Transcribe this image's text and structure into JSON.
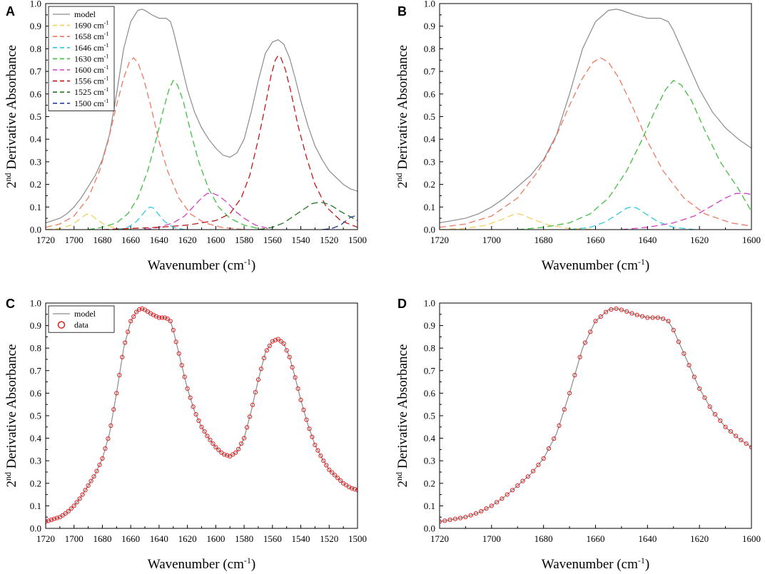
{
  "chart_data": [
    {
      "panel": "A",
      "type": "line",
      "xlabel": "Wavenumber (cm",
      "xlabel_sup": "-1",
      "xlabel_end": ")",
      "ylabel_sup": "nd",
      "ylabel_prefix": "2",
      "ylabel": " Derivative Absorbance",
      "xlim": [
        1720,
        1500
      ],
      "ylim": [
        0,
        1.0
      ],
      "xticks": [
        1720,
        1700,
        1680,
        1660,
        1640,
        1620,
        1600,
        1580,
        1560,
        1540,
        1520,
        1500
      ],
      "yticks": [
        "0.0",
        "0.1",
        "0.2",
        "0.3",
        "0.4",
        "0.5",
        "0.6",
        "0.7",
        "0.8",
        "0.9",
        "1.0"
      ],
      "legend_position": "top-left",
      "legend": [
        {
          "label": "model",
          "sup": "",
          "color": "#8c8c8c",
          "dash": false
        },
        {
          "label": "1690 cm",
          "sup": "-1",
          "color": "#f0d060",
          "dash": true
        },
        {
          "label": "1658 cm",
          "sup": "-1",
          "color": "#f07860",
          "dash": true
        },
        {
          "label": "1646 cm",
          "sup": "-1",
          "color": "#30c8e0",
          "dash": true
        },
        {
          "label": "1630 cm",
          "sup": "-1",
          "color": "#40c040",
          "dash": true
        },
        {
          "label": "1600 cm",
          "sup": "-1",
          "color": "#d040c0",
          "dash": true
        },
        {
          "label": "1556 cm",
          "sup": "-1",
          "color": "#c01818",
          "dash": true
        },
        {
          "label": "1525 cm",
          "sup": "-1",
          "color": "#207820",
          "dash": true
        },
        {
          "label": "1500 cm",
          "sup": "-1",
          "color": "#283c9c",
          "dash": true
        }
      ],
      "series": [
        {
          "name": "model",
          "color": "#8c8c8c",
          "dash": false,
          "x": [
            1720,
            1715,
            1710,
            1705,
            1700,
            1695,
            1690,
            1685,
            1680,
            1675,
            1670,
            1665,
            1660,
            1655,
            1652,
            1650,
            1645,
            1640,
            1635,
            1632,
            1630,
            1625,
            1620,
            1615,
            1610,
            1605,
            1600,
            1595,
            1590,
            1585,
            1580,
            1575,
            1570,
            1565,
            1560,
            1556,
            1552,
            1548,
            1544,
            1540,
            1535,
            1530,
            1525,
            1520,
            1515,
            1510,
            1505,
            1500
          ],
          "y": [
            0.03,
            0.04,
            0.05,
            0.07,
            0.1,
            0.14,
            0.19,
            0.24,
            0.31,
            0.42,
            0.6,
            0.8,
            0.92,
            0.97,
            0.975,
            0.97,
            0.95,
            0.935,
            0.935,
            0.92,
            0.88,
            0.75,
            0.62,
            0.52,
            0.45,
            0.4,
            0.36,
            0.33,
            0.32,
            0.34,
            0.4,
            0.52,
            0.66,
            0.78,
            0.83,
            0.84,
            0.82,
            0.76,
            0.67,
            0.57,
            0.46,
            0.37,
            0.31,
            0.26,
            0.23,
            0.2,
            0.18,
            0.17
          ]
        },
        {
          "name": "1690",
          "color": "#f0d060",
          "dash": true,
          "x": [
            1720,
            1710,
            1702,
            1696,
            1692,
            1690,
            1688,
            1684,
            1678,
            1670,
            1660
          ],
          "y": [
            0.0,
            0.005,
            0.02,
            0.045,
            0.065,
            0.07,
            0.065,
            0.045,
            0.02,
            0.005,
            0.0
          ]
        },
        {
          "name": "1658",
          "color": "#f07860",
          "dash": true,
          "x": [
            1720,
            1710,
            1700,
            1690,
            1682,
            1676,
            1670,
            1665,
            1661,
            1658,
            1655,
            1651,
            1646,
            1640,
            1634,
            1626,
            1618,
            1608,
            1596,
            1580
          ],
          "y": [
            0.01,
            0.025,
            0.06,
            0.14,
            0.26,
            0.39,
            0.55,
            0.67,
            0.74,
            0.76,
            0.74,
            0.67,
            0.55,
            0.39,
            0.26,
            0.14,
            0.07,
            0.03,
            0.01,
            0.0
          ]
        },
        {
          "name": "1646",
          "color": "#30c8e0",
          "dash": true,
          "x": [
            1670,
            1662,
            1656,
            1652,
            1648,
            1646,
            1644,
            1640,
            1636,
            1630,
            1622
          ],
          "y": [
            0.0,
            0.01,
            0.035,
            0.065,
            0.095,
            0.1,
            0.095,
            0.065,
            0.035,
            0.01,
            0.0
          ]
        },
        {
          "name": "1630",
          "color": "#40c040",
          "dash": true,
          "x": [
            1690,
            1680,
            1670,
            1662,
            1655,
            1648,
            1642,
            1637,
            1633,
            1630,
            1627,
            1623,
            1618,
            1612,
            1605,
            1598,
            1590,
            1580,
            1570
          ],
          "y": [
            0.0,
            0.01,
            0.03,
            0.07,
            0.14,
            0.26,
            0.4,
            0.53,
            0.62,
            0.66,
            0.64,
            0.57,
            0.44,
            0.3,
            0.18,
            0.1,
            0.05,
            0.02,
            0.005
          ]
        },
        {
          "name": "1600",
          "color": "#d040c0",
          "dash": true,
          "x": [
            1650,
            1640,
            1630,
            1622,
            1616,
            1610,
            1606,
            1602,
            1598,
            1592,
            1586,
            1580,
            1572,
            1560
          ],
          "y": [
            0.0,
            0.01,
            0.03,
            0.06,
            0.1,
            0.14,
            0.16,
            0.16,
            0.15,
            0.12,
            0.08,
            0.05,
            0.02,
            0.0
          ]
        },
        {
          "name": "1556",
          "color": "#c01818",
          "dash": true,
          "x": [
            1680,
            1660,
            1640,
            1620,
            1600,
            1590,
            1582,
            1576,
            1570,
            1565,
            1561,
            1558,
            1556,
            1554,
            1551,
            1547,
            1542,
            1536,
            1530,
            1522,
            1512,
            1500
          ],
          "y": [
            0.0,
            0.005,
            0.01,
            0.02,
            0.04,
            0.07,
            0.14,
            0.24,
            0.4,
            0.55,
            0.68,
            0.75,
            0.77,
            0.76,
            0.71,
            0.61,
            0.46,
            0.32,
            0.2,
            0.1,
            0.04,
            0.01
          ]
        },
        {
          "name": "1525",
          "color": "#207820",
          "dash": true,
          "x": [
            1570,
            1560,
            1552,
            1545,
            1538,
            1532,
            1528,
            1525,
            1522,
            1518,
            1512,
            1506,
            1500
          ],
          "y": [
            0.0,
            0.01,
            0.03,
            0.06,
            0.09,
            0.115,
            0.12,
            0.12,
            0.115,
            0.105,
            0.08,
            0.06,
            0.04
          ]
        },
        {
          "name": "1500",
          "color": "#283c9c",
          "dash": true,
          "x": [
            1525,
            1518,
            1512,
            1508,
            1505,
            1502,
            1500
          ],
          "y": [
            0.0,
            0.005,
            0.02,
            0.04,
            0.055,
            0.06,
            0.06
          ]
        }
      ]
    },
    {
      "panel": "B",
      "type": "line",
      "xlabel": "Wavenumber (cm",
      "xlabel_sup": "-1",
      "xlabel_end": ")",
      "ylabel_sup": "nd",
      "ylabel_prefix": "2",
      "ylabel": " Derivative Absorbance",
      "xlim": [
        1720,
        1600
      ],
      "ylim": [
        0,
        1.0
      ],
      "xticks": [
        1720,
        1700,
        1680,
        1660,
        1640,
        1620,
        1600
      ],
      "yticks": [
        "0.0",
        "0.1",
        "0.2",
        "0.3",
        "0.4",
        "0.5",
        "0.6",
        "0.7",
        "0.8",
        "0.9",
        "1.0"
      ],
      "series": [
        {
          "name": "model",
          "color": "#8c8c8c",
          "dash": false,
          "x": [
            1720,
            1715,
            1710,
            1705,
            1700,
            1695,
            1690,
            1685,
            1680,
            1675,
            1670,
            1665,
            1660,
            1655,
            1652,
            1650,
            1645,
            1640,
            1635,
            1632,
            1630,
            1625,
            1620,
            1615,
            1610,
            1605,
            1600
          ],
          "y": [
            0.03,
            0.04,
            0.05,
            0.07,
            0.1,
            0.14,
            0.19,
            0.24,
            0.31,
            0.42,
            0.6,
            0.8,
            0.92,
            0.97,
            0.975,
            0.97,
            0.95,
            0.935,
            0.935,
            0.92,
            0.88,
            0.75,
            0.62,
            0.52,
            0.45,
            0.4,
            0.36
          ]
        },
        {
          "name": "1690",
          "color": "#f0d060",
          "dash": true,
          "x": [
            1720,
            1710,
            1702,
            1696,
            1692,
            1690,
            1688,
            1684,
            1678,
            1670,
            1660
          ],
          "y": [
            0.0,
            0.005,
            0.02,
            0.045,
            0.065,
            0.07,
            0.065,
            0.045,
            0.02,
            0.005,
            0.0
          ]
        },
        {
          "name": "1658",
          "color": "#f07860",
          "dash": true,
          "x": [
            1720,
            1710,
            1700,
            1690,
            1682,
            1676,
            1670,
            1665,
            1661,
            1658,
            1655,
            1651,
            1646,
            1640,
            1634,
            1626,
            1618,
            1608,
            1600
          ],
          "y": [
            0.01,
            0.025,
            0.06,
            0.14,
            0.26,
            0.39,
            0.55,
            0.67,
            0.74,
            0.76,
            0.74,
            0.67,
            0.55,
            0.39,
            0.26,
            0.14,
            0.07,
            0.03,
            0.015
          ]
        },
        {
          "name": "1646",
          "color": "#30c8e0",
          "dash": true,
          "x": [
            1670,
            1662,
            1656,
            1652,
            1648,
            1646,
            1644,
            1640,
            1636,
            1630,
            1622
          ],
          "y": [
            0.0,
            0.01,
            0.035,
            0.065,
            0.095,
            0.1,
            0.095,
            0.065,
            0.035,
            0.01,
            0.0
          ]
        },
        {
          "name": "1630",
          "color": "#40c040",
          "dash": true,
          "x": [
            1690,
            1680,
            1670,
            1662,
            1655,
            1648,
            1642,
            1637,
            1633,
            1630,
            1627,
            1623,
            1618,
            1612,
            1605,
            1600
          ],
          "y": [
            0.0,
            0.01,
            0.03,
            0.07,
            0.14,
            0.26,
            0.4,
            0.53,
            0.62,
            0.66,
            0.64,
            0.57,
            0.44,
            0.3,
            0.18,
            0.08
          ]
        },
        {
          "name": "1600",
          "color": "#d040c0",
          "dash": true,
          "x": [
            1650,
            1640,
            1630,
            1622,
            1616,
            1610,
            1606,
            1602,
            1600
          ],
          "y": [
            0.0,
            0.01,
            0.03,
            0.06,
            0.1,
            0.14,
            0.16,
            0.16,
            0.155
          ]
        }
      ]
    },
    {
      "panel": "C",
      "type": "line",
      "xlabel": "Wavenumber (cm",
      "xlabel_sup": "-1",
      "xlabel_end": ")",
      "ylabel_sup": "nd",
      "ylabel_prefix": "2",
      "ylabel": " Derivative Absorbance",
      "xlim": [
        1720,
        1500
      ],
      "ylim": [
        0,
        1.0
      ],
      "xticks": [
        1720,
        1700,
        1680,
        1660,
        1640,
        1620,
        1600,
        1580,
        1560,
        1540,
        1520,
        1500
      ],
      "yticks": [
        "0.0",
        "0.1",
        "0.2",
        "0.3",
        "0.4",
        "0.5",
        "0.6",
        "0.7",
        "0.8",
        "0.9",
        "1.0"
      ],
      "legend_position": "top-left",
      "legend": [
        {
          "label": "model",
          "sup": "",
          "color": "#8c8c8c",
          "kind": "line"
        },
        {
          "label": "data",
          "sup": "",
          "color": "#e02020",
          "kind": "circle"
        }
      ],
      "data_step": 2,
      "series": [
        {
          "name": "model",
          "color": "#8c8c8c",
          "dash": false,
          "x": [
            1720,
            1715,
            1710,
            1705,
            1700,
            1695,
            1690,
            1685,
            1680,
            1675,
            1670,
            1665,
            1660,
            1655,
            1652,
            1650,
            1645,
            1640,
            1635,
            1632,
            1630,
            1625,
            1620,
            1615,
            1610,
            1605,
            1600,
            1595,
            1590,
            1585,
            1580,
            1575,
            1570,
            1565,
            1560,
            1556,
            1552,
            1548,
            1544,
            1540,
            1535,
            1530,
            1525,
            1520,
            1515,
            1510,
            1505,
            1500
          ],
          "y": [
            0.03,
            0.04,
            0.05,
            0.07,
            0.1,
            0.14,
            0.19,
            0.24,
            0.31,
            0.42,
            0.6,
            0.8,
            0.92,
            0.97,
            0.975,
            0.97,
            0.95,
            0.935,
            0.935,
            0.92,
            0.88,
            0.75,
            0.62,
            0.52,
            0.45,
            0.4,
            0.36,
            0.33,
            0.32,
            0.34,
            0.4,
            0.52,
            0.66,
            0.78,
            0.83,
            0.84,
            0.82,
            0.76,
            0.67,
            0.57,
            0.46,
            0.37,
            0.31,
            0.26,
            0.23,
            0.2,
            0.18,
            0.17
          ]
        }
      ]
    },
    {
      "panel": "D",
      "type": "line",
      "xlabel": "Wavenumber (cm",
      "xlabel_sup": "-1",
      "xlabel_end": ")",
      "ylabel_sup": "nd",
      "ylabel_prefix": "2",
      "ylabel": " Derivative Absorbance",
      "xlim": [
        1720,
        1600
      ],
      "ylim": [
        0,
        1.0
      ],
      "xticks": [
        1720,
        1700,
        1680,
        1660,
        1640,
        1620,
        1600
      ],
      "yticks": [
        "0.0",
        "0.1",
        "0.2",
        "0.3",
        "0.4",
        "0.5",
        "0.6",
        "0.7",
        "0.8",
        "0.9",
        "1.0"
      ],
      "data_step": 2,
      "series": [
        {
          "name": "model",
          "color": "#8c8c8c",
          "dash": false,
          "x": [
            1720,
            1715,
            1710,
            1705,
            1700,
            1695,
            1690,
            1685,
            1680,
            1675,
            1670,
            1665,
            1660,
            1655,
            1652,
            1650,
            1645,
            1640,
            1635,
            1632,
            1630,
            1625,
            1620,
            1615,
            1610,
            1605,
            1600
          ],
          "y": [
            0.03,
            0.04,
            0.05,
            0.07,
            0.1,
            0.14,
            0.19,
            0.24,
            0.31,
            0.42,
            0.6,
            0.8,
            0.92,
            0.97,
            0.975,
            0.97,
            0.95,
            0.935,
            0.935,
            0.92,
            0.88,
            0.75,
            0.62,
            0.52,
            0.45,
            0.4,
            0.36
          ]
        }
      ]
    }
  ]
}
